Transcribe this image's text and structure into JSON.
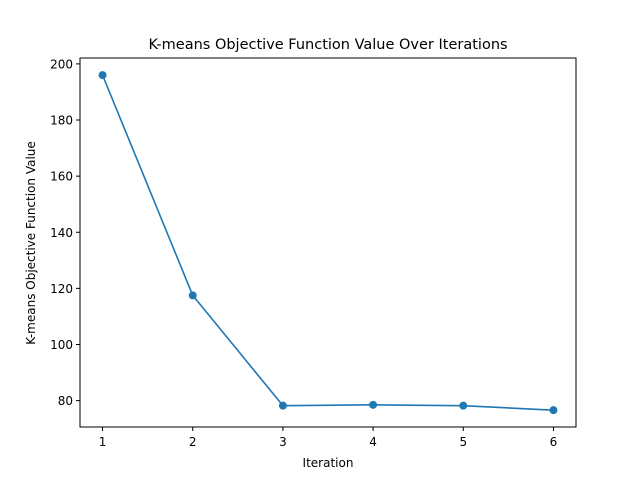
{
  "chart_data": {
    "type": "line",
    "title": "K-means Objective Function Value Over Iterations",
    "xlabel": "Iteration",
    "ylabel": "K-means Objective Function Value",
    "x": [
      1,
      2,
      3,
      4,
      5,
      6
    ],
    "series": [
      {
        "values": [
          196.0,
          117.5,
          78.2,
          78.5,
          78.2,
          76.6
        ],
        "color": "#1f77b4",
        "marker": "circle"
      }
    ],
    "xlim": [
      0.75,
      6.25
    ],
    "ylim": [
      70.6,
      202.1
    ],
    "xticks": [
      1,
      2,
      3,
      4,
      5,
      6
    ],
    "yticks": [
      80,
      100,
      120,
      140,
      160,
      180,
      200
    ],
    "grid": false,
    "legend": "none"
  }
}
